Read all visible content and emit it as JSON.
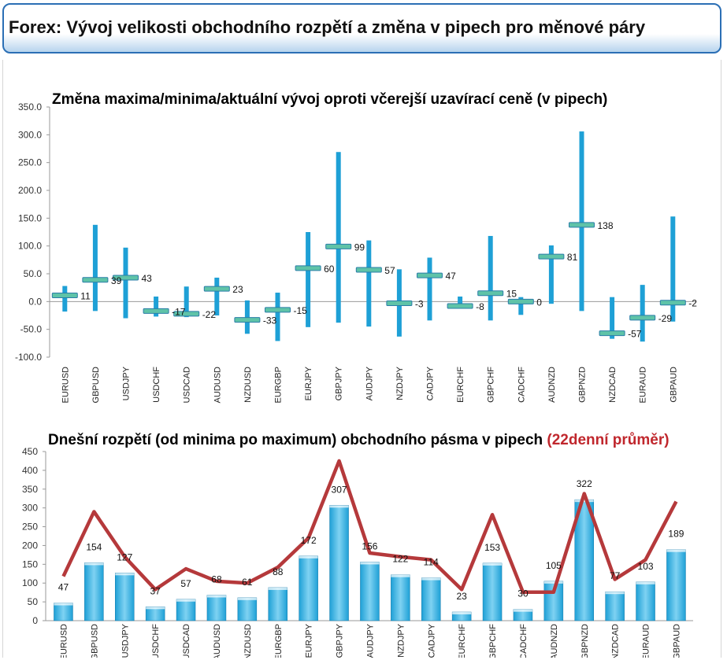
{
  "header": {
    "title": "Forex: Vývoj velikosti obchodního rozpětí a změna v pipech pro měnové páry"
  },
  "colors": {
    "bar": "#1ea0d6",
    "bar_light": "#7fd2f2",
    "avg_line": "#b5393b",
    "marker": "#5fc3a8",
    "accent_title": "#c0272d"
  },
  "chart_data": [
    {
      "type": "bar",
      "title": "Změna maxima/minima/aktuální vývoj oproti včerejší uzavírací ceně (v pipech)",
      "categories": [
        "EURUSD",
        "GBPUSD",
        "USDJPY",
        "USDCHF",
        "USDCAD",
        "AUDUSD",
        "NZDUSD",
        "EURGBP",
        "EURJPY",
        "GBPJPY",
        "AUDJPY",
        "NZDJPY",
        "CADJPY",
        "EURCHF",
        "GBPCHF",
        "CADCHF",
        "AUDNZD",
        "GBPNZD",
        "NZDCAD",
        "EURAUD",
        "GBPAUD"
      ],
      "series": [
        {
          "name": "",
          "values": [
            28,
            138,
            97,
            9,
            27,
            43,
            2,
            16,
            125,
            269,
            110,
            58,
            79,
            9,
            118,
            8,
            101,
            306,
            8,
            30,
            153
          ]
        },
        {
          "name": "",
          "values": [
            -18,
            -17,
            -30,
            -27,
            -28,
            -25,
            -58,
            -71,
            -46,
            -38,
            -45,
            -63,
            -34,
            -12,
            -34,
            -24,
            -4,
            -17,
            -67,
            -72,
            -36
          ]
        },
        {
          "name": "",
          "values": [
            11,
            39,
            43,
            -17,
            -22,
            23,
            -33,
            -15,
            60,
            99,
            57,
            -3,
            47,
            -8,
            15,
            0,
            81,
            138,
            -57,
            -29,
            -2
          ]
        }
      ],
      "value_labels": [
        "11",
        "39",
        "43",
        "-17",
        "-22",
        "23",
        "-33",
        "-15",
        "60",
        "99",
        "57",
        "-3",
        "47",
        "-8",
        "15",
        "0",
        "81",
        "138",
        "-57",
        "-29",
        "-2"
      ],
      "y_ticks": [
        "350.0",
        "300.0",
        "250.0",
        "200.0",
        "150.0",
        "100.0",
        "50.0",
        "0.0",
        "-50.0",
        "-100.0"
      ],
      "ylim": [
        -100,
        350
      ],
      "grid": false,
      "xlabel": "",
      "ylabel": ""
    },
    {
      "type": "bar",
      "title": "Dnešní rozpětí (od minima po maximum) obchodního pásma v pipech",
      "title_accent": "(22denní průměr)",
      "categories": [
        "EURUSD",
        "GBPUSD",
        "USDJPY",
        "USDCHF",
        "USDCAD",
        "AUDUSD",
        "NZDUSD",
        "EURGBP",
        "EURJPY",
        "GBPJPY",
        "AUDJPY",
        "NZDJPY",
        "CADJPY",
        "EURCHF",
        "GBPCHF",
        "CADCHF",
        "AUDNZD",
        "GBPNZD",
        "NZDCAD",
        "EURAUD",
        "GBPAUD"
      ],
      "series": [
        {
          "name": "",
          "type": "bar",
          "values": [
            47,
            154,
            127,
            37,
            57,
            68,
            61,
            88,
            172,
            307,
            156,
            122,
            114,
            23,
            153,
            30,
            105,
            322,
            77,
            103,
            189
          ]
        },
        {
          "name": "",
          "type": "line",
          "values": [
            118,
            290,
            170,
            83,
            138,
            105,
            100,
            142,
            220,
            425,
            180,
            170,
            162,
            83,
            282,
            76,
            76,
            338,
            110,
            162,
            317
          ]
        }
      ],
      "value_labels": [
        "47",
        "154",
        "127",
        "37",
        "57",
        "68",
        "61",
        "88",
        "172",
        "307",
        "156",
        "122",
        "114",
        "23",
        "153",
        "30",
        "105",
        "322",
        "77",
        "103",
        "189"
      ],
      "y_ticks": [
        "450",
        "400",
        "350",
        "300",
        "250",
        "200",
        "150",
        "100",
        "50",
        "0"
      ],
      "ylim": [
        0,
        450
      ],
      "grid": false,
      "xlabel": "",
      "ylabel": ""
    }
  ]
}
